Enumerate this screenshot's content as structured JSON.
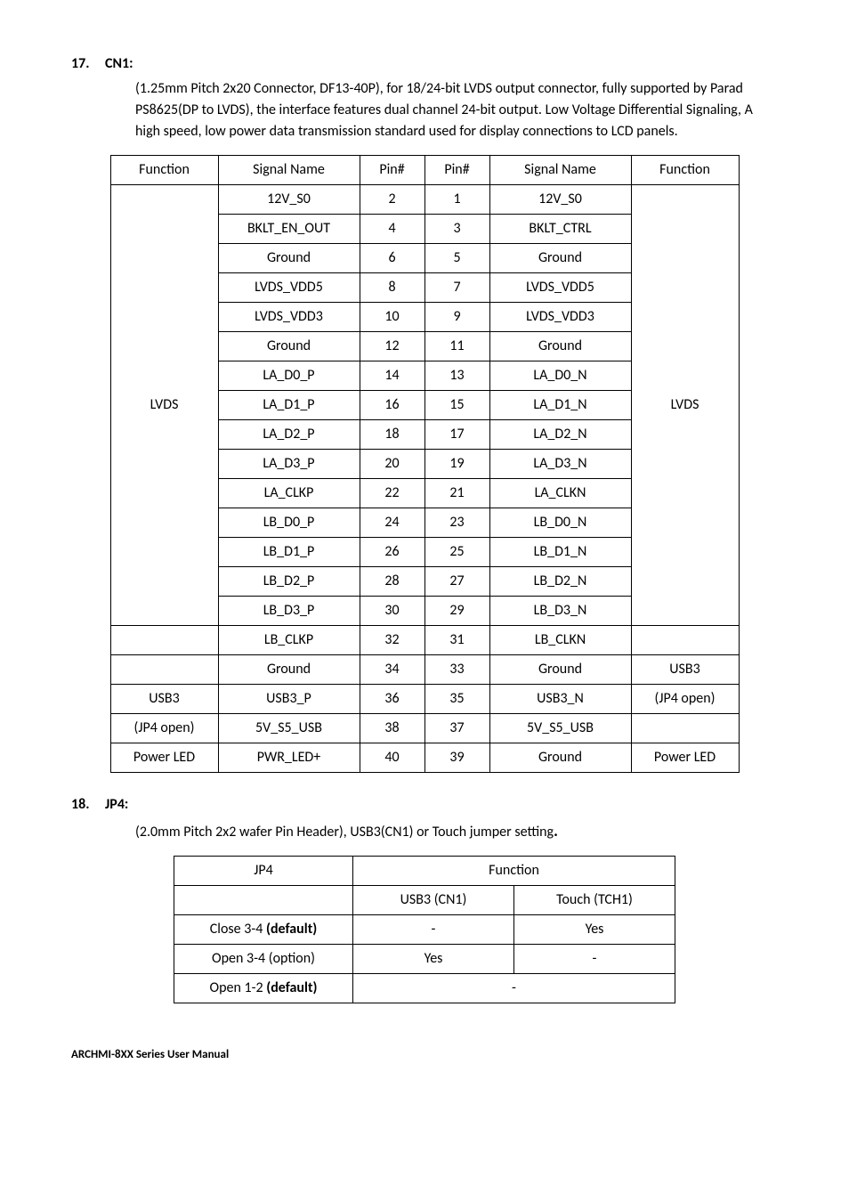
{
  "section1": {
    "num": "17.",
    "title": "CN1:",
    "intro": "(1.25mm Pitch 2x20 Connector, DF13-40P), for 18/24-bit LVDS output connector, fully supported by Parad PS8625(DP to LVDS), the interface features dual channel 24-bit output. Low Voltage Differential Signaling, A high speed, low power data transmission standard used for display connections to LCD panels.",
    "table": {
      "header": [
        "Function",
        "Signal Name",
        "Pin#",
        "Pin#",
        "Signal Name",
        "Function"
      ],
      "lvds_left": "LVDS",
      "lvds_right": "LVDS",
      "rows": [
        {
          "sig_l": "12V_S0",
          "pin_l": "2",
          "pin_r": "1",
          "sig_r": "12V_S0"
        },
        {
          "sig_l": "BKLT_EN_OUT",
          "pin_l": "4",
          "pin_r": "3",
          "sig_r": "BKLT_CTRL"
        },
        {
          "sig_l": "Ground",
          "pin_l": "6",
          "pin_r": "5",
          "sig_r": "Ground"
        },
        {
          "sig_l": "LVDS_VDD5",
          "pin_l": "8",
          "pin_r": "7",
          "sig_r": "LVDS_VDD5"
        },
        {
          "sig_l": "LVDS_VDD3",
          "pin_l": "10",
          "pin_r": "9",
          "sig_r": "LVDS_VDD3"
        },
        {
          "sig_l": "Ground",
          "pin_l": "12",
          "pin_r": "11",
          "sig_r": "Ground"
        },
        {
          "sig_l": "LA_D0_P",
          "pin_l": "14",
          "pin_r": "13",
          "sig_r": "LA_D0_N"
        },
        {
          "sig_l": "LA_D1_P",
          "pin_l": "16",
          "pin_r": "15",
          "sig_r": "LA_D1_N"
        },
        {
          "sig_l": "LA_D2_P",
          "pin_l": "18",
          "pin_r": "17",
          "sig_r": "LA_D2_N"
        },
        {
          "sig_l": "LA_D3_P",
          "pin_l": "20",
          "pin_r": "19",
          "sig_r": "LA_D3_N"
        },
        {
          "sig_l": "LA_CLKP",
          "pin_l": "22",
          "pin_r": "21",
          "sig_r": "LA_CLKN"
        },
        {
          "sig_l": "LB_D0_P",
          "pin_l": "24",
          "pin_r": "23",
          "sig_r": "LB_D0_N"
        },
        {
          "sig_l": "LB_D1_P",
          "pin_l": "26",
          "pin_r": "25",
          "sig_r": "LB_D1_N"
        },
        {
          "sig_l": "LB_D2_P",
          "pin_l": "28",
          "pin_r": "27",
          "sig_r": "LB_D2_N"
        },
        {
          "sig_l": "LB_D3_P",
          "pin_l": "30",
          "pin_r": "29",
          "sig_r": "LB_D3_N"
        }
      ],
      "row16": {
        "func_l": "",
        "sig_l": "LB_CLKP",
        "pin_l": "32",
        "pin_r": "31",
        "sig_r": "LB_CLKN",
        "func_r": ""
      },
      "usb_block": {
        "r17": {
          "func_l": "",
          "sig_l": "Ground",
          "pin_l": "34",
          "pin_r": "33",
          "sig_r": "Ground",
          "func_r": "USB3"
        },
        "r18": {
          "func_l": "USB3",
          "sig_l": "USB3_P",
          "pin_l": "36",
          "pin_r": "35",
          "sig_r": "USB3_N",
          "func_r": "(JP4 open)"
        },
        "r19": {
          "func_l": "(JP4 open)",
          "sig_l": "5V_S5_USB",
          "pin_l": "38",
          "pin_r": "37",
          "sig_r": "5V_S5_USB",
          "func_r": ""
        }
      },
      "row20": {
        "func_l": "Power LED",
        "sig_l": "PWR_LED+",
        "pin_l": "40",
        "pin_r": "39",
        "sig_r": "Ground",
        "func_r": "Power LED"
      }
    }
  },
  "section2": {
    "num": "18.",
    "title": "JP4:",
    "intro": "(2.0mm Pitch 2x2 wafer Pin Header), USB3(CN1) or Touch jumper setting",
    "table": {
      "h1": "JP4",
      "h2": "Function",
      "sub1": "USB3 (CN1)",
      "sub2": "Touch (TCH1)",
      "r1": {
        "jp": "Close 3-4 ",
        "jp_b": "(default)",
        "c1": "-",
        "c2": "Yes"
      },
      "r2": {
        "jp": "Open 3-4 (option)",
        "c1": "Yes",
        "c2": "-"
      },
      "r3": {
        "jp": "Open 1-2 ",
        "jp_b": "(default)",
        "c": "-"
      }
    }
  },
  "footer": "ARCHMI-8XX Series User Manual"
}
